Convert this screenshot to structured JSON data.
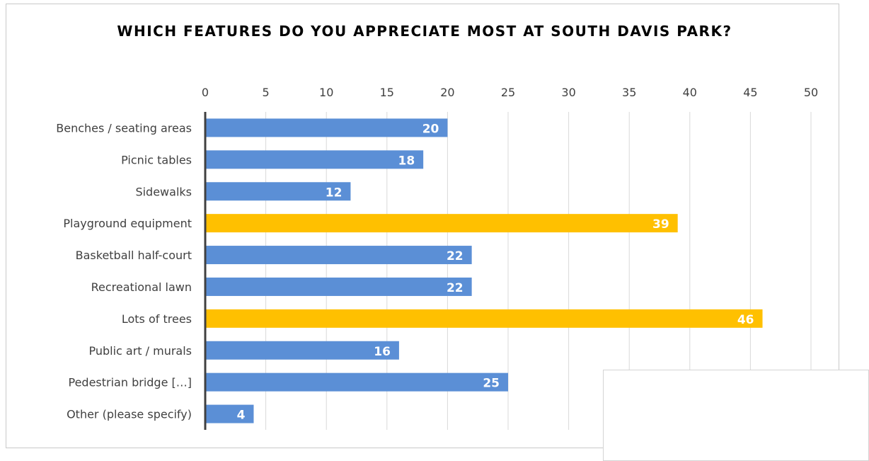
{
  "chart_data": {
    "type": "bar",
    "orientation": "horizontal",
    "title": "WHICH FEATURES DO YOU APPRECIATE MOST AT SOUTH DAVIS PARK?",
    "categories": [
      "Benches / seating areas",
      "Picnic tables",
      "Sidewalks",
      "Playground equipment",
      "Basketball half-court",
      "Recreational lawn",
      "Lots of trees",
      "Public art / murals",
      "Pedestrian bridge […]",
      "Other (please specify)"
    ],
    "values": [
      20,
      18,
      12,
      39,
      22,
      22,
      46,
      16,
      25,
      4
    ],
    "highlighted": [
      false,
      false,
      false,
      true,
      false,
      false,
      true,
      false,
      false,
      false
    ],
    "xlim": [
      0,
      50
    ],
    "xticks": [
      0,
      5,
      10,
      15,
      20,
      25,
      30,
      35,
      40,
      45,
      50
    ],
    "x_axis_position": "top",
    "grid": true,
    "data_labels": true,
    "colors": {
      "default": "#5B8FD6",
      "highlight": "#FFC000",
      "grid": "#d9d9d9",
      "axis": "#404040"
    }
  }
}
